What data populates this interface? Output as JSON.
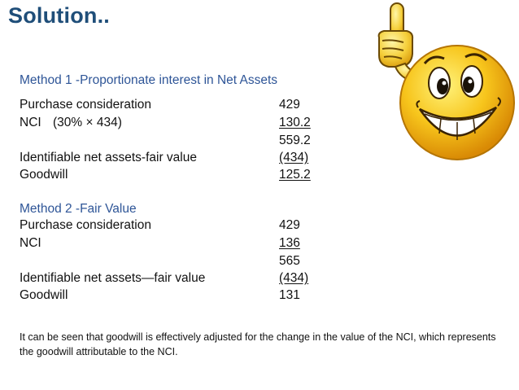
{
  "slide": {
    "title": "Solution.."
  },
  "method1": {
    "heading": "Method 1 -Proportionate interest in Net Assets",
    "rows": [
      {
        "label": "Purchase consideration",
        "sublabel": "",
        "value": "429",
        "underline": false
      },
      {
        "label": "NCI",
        "sublabel": "(30% × 434)",
        "value": "130.2",
        "underline": true
      },
      {
        "label": "",
        "sublabel": "",
        "value": "559.2",
        "underline": false
      },
      {
        "label": "Identifiable net assets-fair value",
        "sublabel": "",
        "value": "(434)",
        "underline": true
      },
      {
        "label": "Goodwill",
        "sublabel": "",
        "value": "125.2",
        "underline": true
      }
    ]
  },
  "method2": {
    "heading": "Method 2 -Fair Value",
    "rows": [
      {
        "label": "Purchase consideration",
        "sublabel": "",
        "value": "429",
        "underline": false
      },
      {
        "label": "NCI",
        "sublabel": "",
        "value": "136",
        "underline": true
      },
      {
        "label": "",
        "sublabel": "",
        "value": "565",
        "underline": false
      },
      {
        "label": "Identifiable net assets—fair value",
        "sublabel": "",
        "value": "(434)",
        "underline": true
      },
      {
        "label": "Goodwill",
        "sublabel": "",
        "value": "131",
        "underline": true
      }
    ]
  },
  "note": "It can be seen that goodwill is effectively adjusted for the change in the value of the NCI, which represents the goodwill attributable to the NCI.",
  "illustration": {
    "icon": "smiley-pointing-up-icon"
  },
  "colors": {
    "title": "#1f4e79",
    "heading": "#2e5597",
    "text": "#111111",
    "emoji_face": "#f7c51c"
  }
}
